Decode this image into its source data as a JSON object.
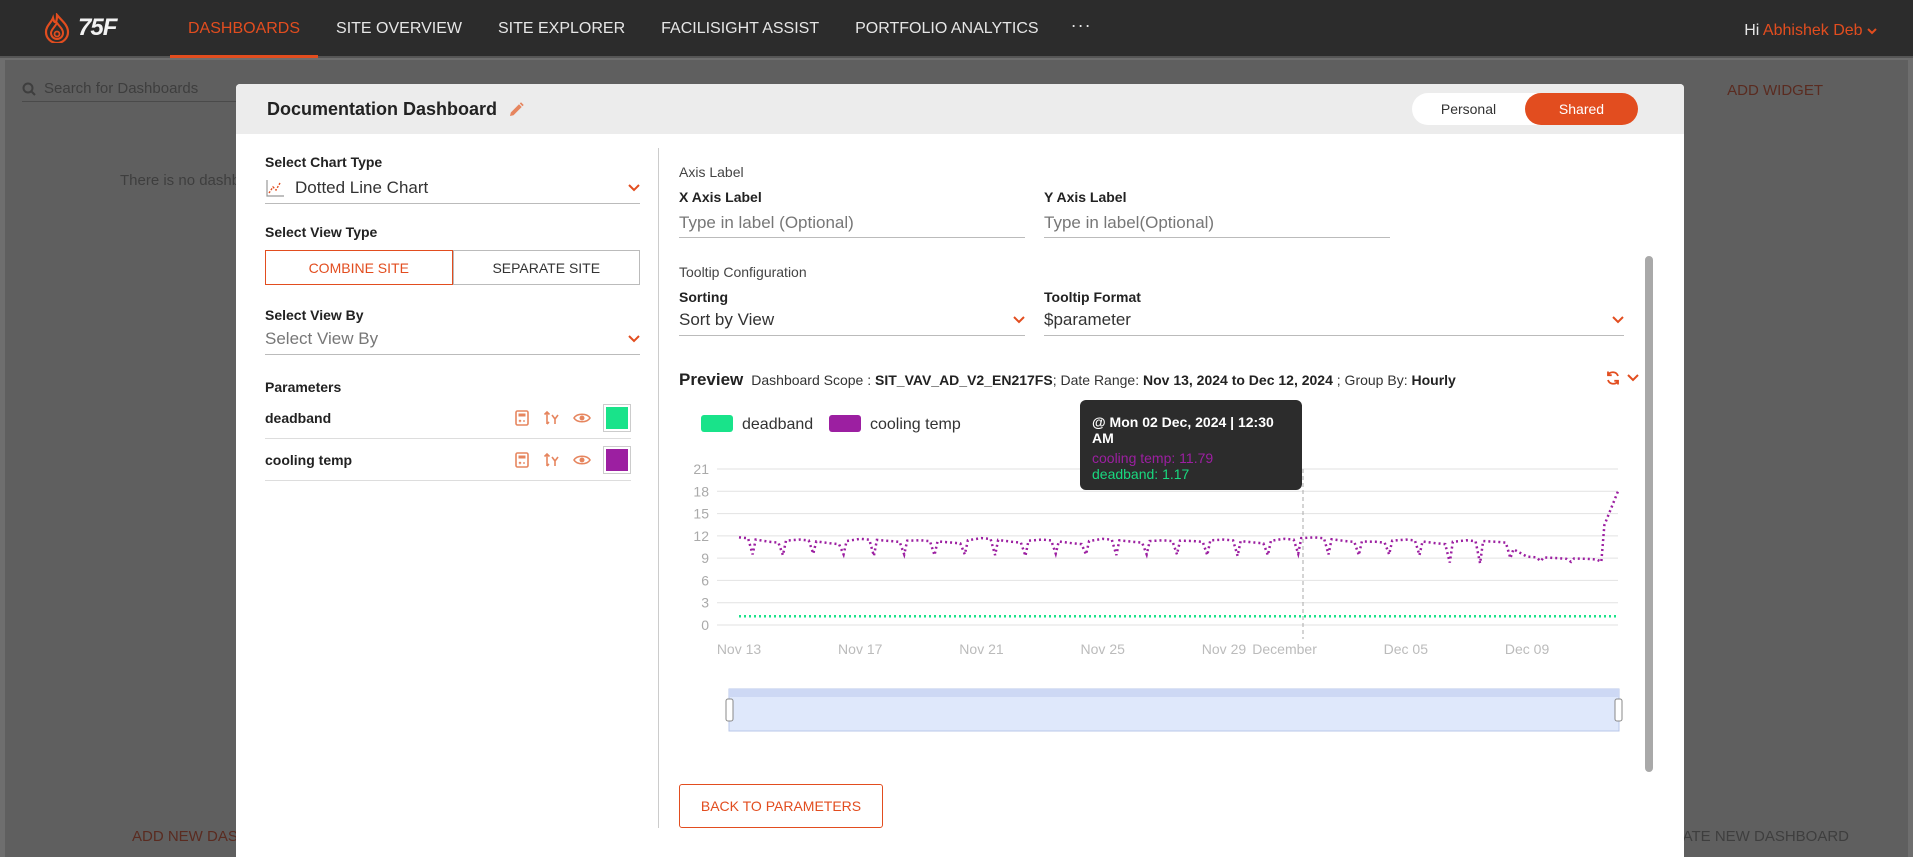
{
  "nav": {
    "logo_text": "75F",
    "items": [
      {
        "label": "DASHBOARDS",
        "active": true
      },
      {
        "label": "SITE OVERVIEW"
      },
      {
        "label": "SITE EXPLORER"
      },
      {
        "label": "FACILISIGHT ASSIST"
      },
      {
        "label": "PORTFOLIO ANALYTICS"
      }
    ],
    "more": "···",
    "greeting": "Hi",
    "user": "Abhishek Deb"
  },
  "background": {
    "search_placeholder": "Search for Dashboards",
    "empty_text": "There is no dashb",
    "add_widget": "ADD WIDGET",
    "add_new_dash": "ADD NEW DAS",
    "create_new_dash": "ATE NEW DASHBOARD"
  },
  "modal": {
    "title": "Documentation Dashboard",
    "toggle": {
      "personal": "Personal",
      "shared": "Shared",
      "selected": "shared"
    },
    "chart_type": {
      "label": "Select Chart Type",
      "value": "Dotted Line Chart"
    },
    "view_type": {
      "label": "Select View Type",
      "combine": "COMBINE SITE",
      "separate": "SEPARATE SITE",
      "selected": "combine"
    },
    "view_by": {
      "label": "Select View By",
      "placeholder": "Select View By"
    },
    "parameters": {
      "label": "Parameters",
      "items": [
        {
          "name": "deadband",
          "color": "#19e38a"
        },
        {
          "name": "cooling temp",
          "color": "#9c1fa1"
        }
      ]
    },
    "axis": {
      "section": "Axis Label",
      "x_label": "X Axis Label",
      "x_placeholder": "Type in label (Optional)",
      "y_label": "Y Axis Label",
      "y_placeholder": "Type in label(Optional)"
    },
    "tooltip_config": {
      "section": "Tooltip Configuration",
      "sorting_label": "Sorting",
      "sorting_value": "Sort by View",
      "format_label": "Tooltip Format",
      "format_value": "$parameter"
    },
    "preview": {
      "title": "Preview",
      "scope_label": "Dashboard Scope :",
      "scope_value": "SIT_VAV_AD_V2_EN217FS",
      "range_label": "; Date Range:",
      "range_value": "Nov 13, 2024 to Dec 12, 2024",
      "group_label": "; Group By:",
      "group_value": "Hourly"
    },
    "back_button": "BACK TO PARAMETERS"
  },
  "tooltip": {
    "date": "@ Mon 02 Dec, 2024 | 12:30 AM",
    "line1": "cooling temp: 11.79",
    "line2": "deadband: 1.17"
  },
  "chart_data": {
    "type": "line",
    "style": "dotted",
    "x_ticks": [
      "Nov 13",
      "Nov 17",
      "Nov 21",
      "Nov 25",
      "Nov 29",
      "December",
      "Dec 05",
      "Dec 09"
    ],
    "y_ticks": [
      0,
      3,
      6,
      9,
      12,
      15,
      18,
      21
    ],
    "ylim": [
      0,
      21
    ],
    "xlim": [
      "Nov 13",
      "Dec 12"
    ],
    "grid": true,
    "legend": "top-left",
    "series": [
      {
        "name": "deadband",
        "color": "#19e38a",
        "x": [
          "Nov 13",
          "Nov 17",
          "Nov 21",
          "Nov 25",
          "Nov 29",
          "Dec 02",
          "Dec 05",
          "Dec 09",
          "Dec 12"
        ],
        "values": [
          1.17,
          1.17,
          1.17,
          1.17,
          1.17,
          1.17,
          1.17,
          1.17,
          1.17
        ]
      },
      {
        "name": "cooling temp",
        "color": "#9c1fa1",
        "x": [
          "Nov 13",
          "Nov 14",
          "Nov 15",
          "Nov 16",
          "Nov 17",
          "Nov 18",
          "Nov 19",
          "Nov 20",
          "Nov 21",
          "Nov 22",
          "Nov 23",
          "Nov 24",
          "Nov 25",
          "Nov 26",
          "Nov 27",
          "Nov 28",
          "Nov 29",
          "Nov 30",
          "Dec 01",
          "Dec 02",
          "Dec 03",
          "Dec 04",
          "Dec 05",
          "Dec 06",
          "Dec 07",
          "Dec 08",
          "Dec 09",
          "Dec 10",
          "Dec 11",
          "Dec 12"
        ],
        "values": [
          11.8,
          11.2,
          11.5,
          11.0,
          11.6,
          11.3,
          11.4,
          11.1,
          11.7,
          11.2,
          11.5,
          11.0,
          11.6,
          11.2,
          11.4,
          11.3,
          11.5,
          11.1,
          11.6,
          11.79,
          11.3,
          11.2,
          11.5,
          11.0,
          11.4,
          11.2,
          9.2,
          9.0,
          8.9,
          18.0
        ],
        "dips": [
          9.5,
          9.4,
          9.6,
          9.5,
          9.3,
          9.5,
          9.4,
          9.5,
          9.4,
          9.3,
          9.6,
          9.5,
          9.4,
          9.5,
          9.5,
          9.4,
          9.3,
          9.4,
          9.6,
          9.5,
          9.4,
          9.5,
          9.4,
          8.4,
          8.3,
          9.0,
          8.6,
          8.5,
          8.5,
          8.5
        ]
      }
    ]
  }
}
